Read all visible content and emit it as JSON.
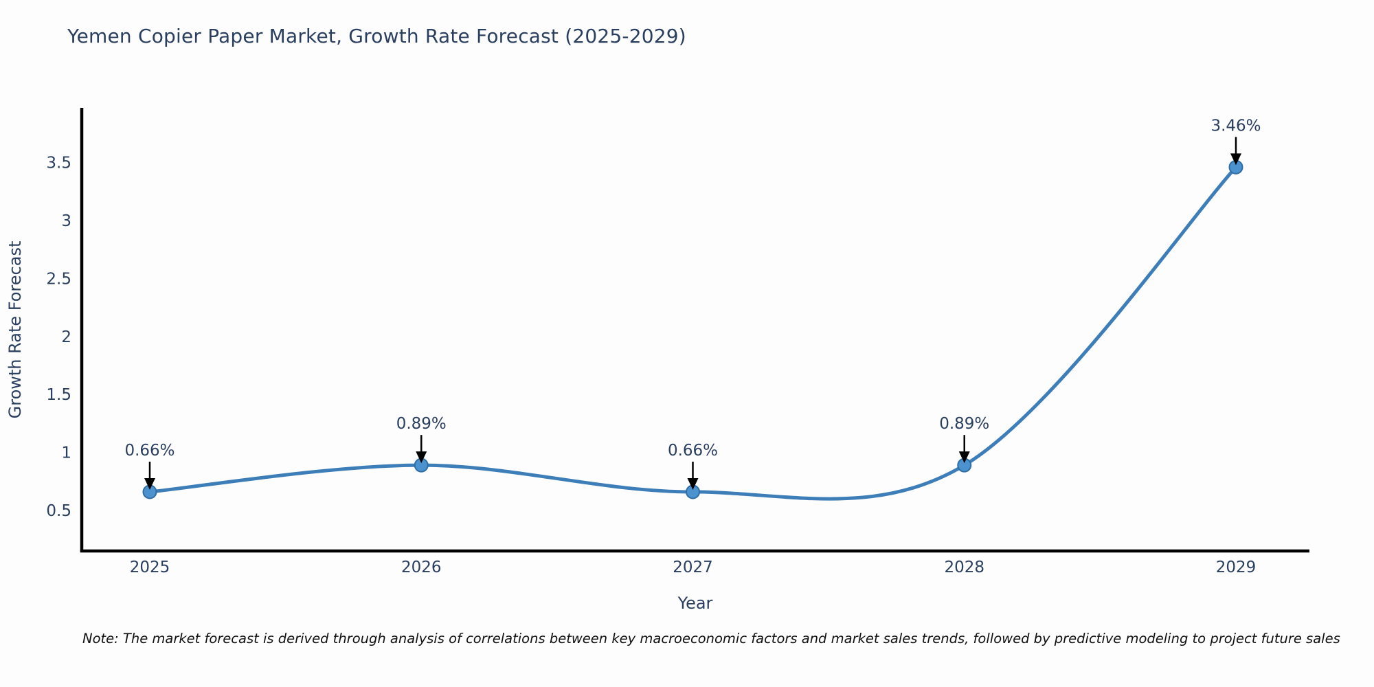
{
  "title": "Yemen Copier Paper Market, Growth Rate Forecast (2025-2029)",
  "note": "Note: The market forecast is derived through analysis of correlations between key macroeconomic factors and market sales trends, followed by predictive modeling to project future sales",
  "chart_data": {
    "type": "line",
    "title": "Yemen Copier Paper Market, Growth Rate Forecast (2025-2029)",
    "xlabel": "Year",
    "ylabel": "Growth Rate Forecast",
    "categories": [
      "2025",
      "2026",
      "2027",
      "2028",
      "2029"
    ],
    "series": [
      {
        "name": "Growth Rate Forecast",
        "values": [
          0.66,
          0.89,
          0.66,
          0.89,
          3.46
        ]
      }
    ],
    "data_labels": [
      "0.66%",
      "0.89%",
      "0.66%",
      "0.89%",
      "3.46%"
    ],
    "yticks": [
      0.5,
      1,
      1.5,
      2,
      2.5,
      3,
      3.5
    ],
    "ylim": [
      0.16,
      3.96
    ],
    "line_shape": "spline",
    "grid": false,
    "legend": false,
    "annotation_style": "arrow-down-to-point",
    "colors": {
      "line": "#3d7eb8",
      "marker_fill": "#4b92cf",
      "marker_edge": "#2f6da5",
      "axis_line": "#000000",
      "tick_text": "#2a3f5f",
      "title_text": "#2a3f5f",
      "annotation_text": "#2a3f5f",
      "arrow": "#000000",
      "background": "#fdfdfd"
    }
  }
}
